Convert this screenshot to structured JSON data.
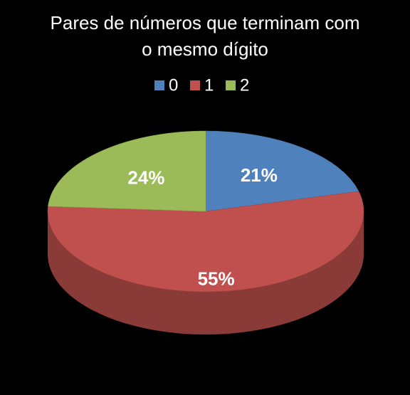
{
  "chart_data": {
    "type": "pie3d",
    "title": "Pares de números que terminam com o mesmo dígito",
    "categories": [
      "0",
      "1",
      "2"
    ],
    "values": [
      21,
      55,
      24
    ],
    "value_labels": [
      "21%",
      "55%",
      "24%"
    ],
    "colors": [
      "#4f81bd",
      "#c0504d",
      "#9bbb59"
    ],
    "legend": "top"
  }
}
